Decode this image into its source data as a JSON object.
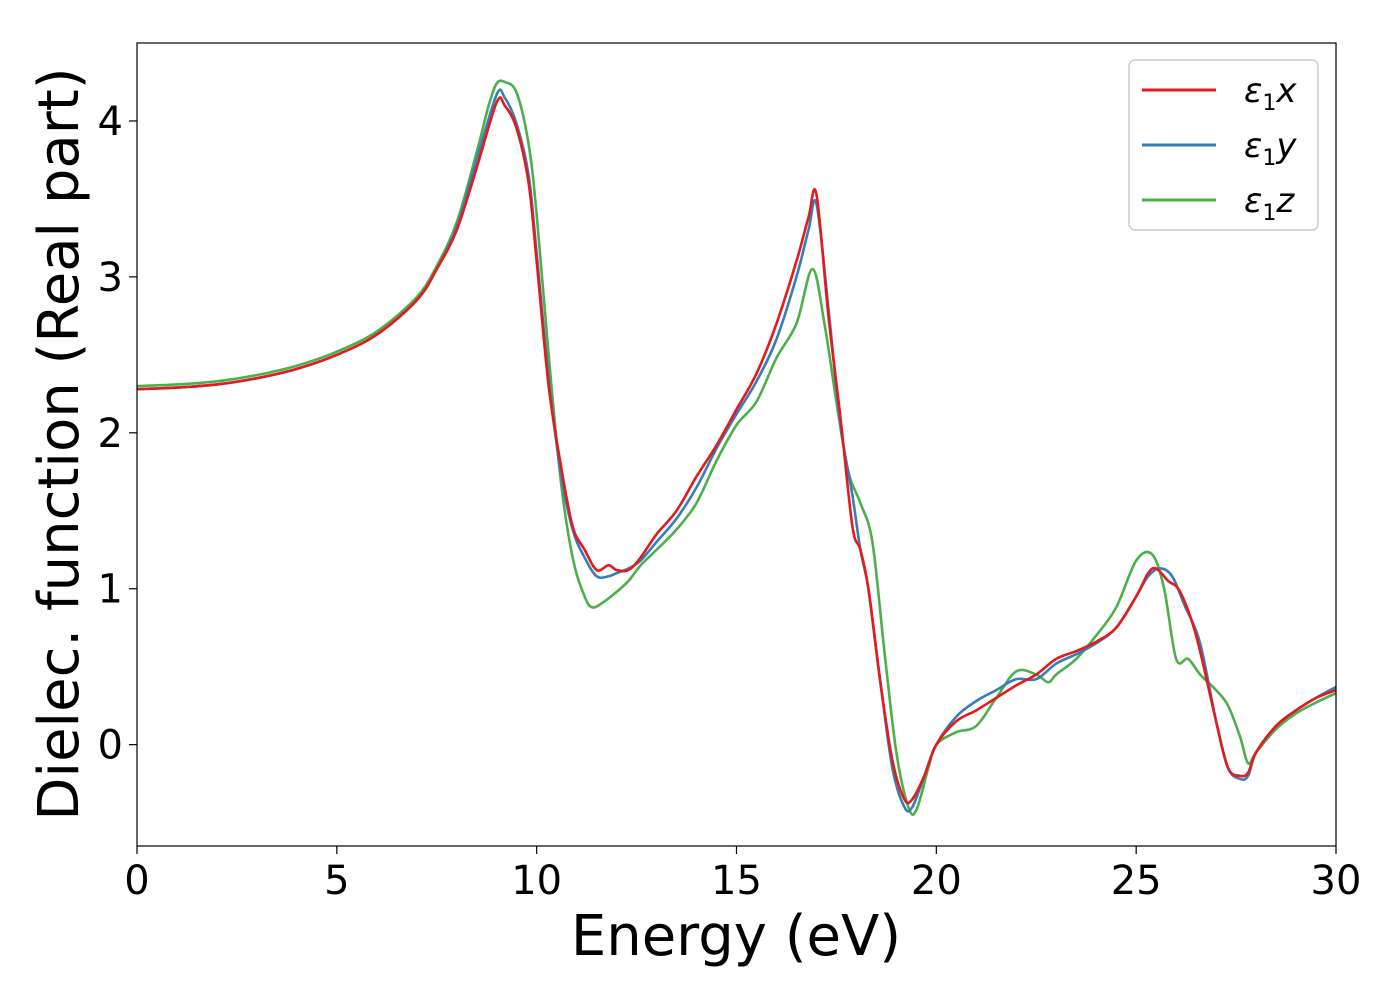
{
  "chart_data": {
    "type": "line",
    "xlabel": "Energy (eV)",
    "ylabel": "Dielec. function (Real part)",
    "xlim": [
      0,
      30
    ],
    "ylim": [
      -0.65,
      4.5
    ],
    "xticks": [
      0,
      5,
      10,
      15,
      20,
      25,
      30
    ],
    "yticks": [
      0,
      1,
      2,
      3,
      4
    ],
    "xtick_labels": [
      "0",
      "5",
      "10",
      "15",
      "20",
      "25",
      "30"
    ],
    "ytick_labels": [
      "0",
      "1",
      "2",
      "3",
      "4"
    ],
    "grid": false,
    "legend_position": "top-right",
    "series": [
      {
        "name": "ε1x",
        "legend": {
          "symbol": "ε",
          "sub": "1",
          "var": "x"
        },
        "color": "#e41a1c",
        "x": [
          0,
          1,
          2,
          3,
          4,
          5,
          6,
          7,
          7.5,
          8,
          8.5,
          9,
          9.2,
          9.5,
          9.8,
          10,
          10.3,
          10.6,
          10.9,
          11.2,
          11.5,
          11.8,
          12,
          12.3,
          12.6,
          13,
          13.5,
          14,
          14.5,
          15,
          15.5,
          16,
          16.5,
          16.8,
          17,
          17.3,
          17.6,
          17.9,
          18.1,
          18.3,
          18.6,
          18.9,
          19.2,
          19.4,
          19.7,
          20,
          20.5,
          21,
          21.5,
          22,
          22.5,
          23,
          23.5,
          24,
          24.5,
          25,
          25.3,
          25.5,
          25.8,
          26.1,
          26.5,
          27,
          27.3,
          27.6,
          27.8,
          28,
          28.5,
          29,
          29.5,
          30
        ],
        "y": [
          2.28,
          2.29,
          2.31,
          2.35,
          2.41,
          2.5,
          2.63,
          2.85,
          3.05,
          3.3,
          3.7,
          4.12,
          4.1,
          3.95,
          3.6,
          3.1,
          2.3,
          1.8,
          1.4,
          1.25,
          1.12,
          1.15,
          1.12,
          1.12,
          1.2,
          1.35,
          1.5,
          1.72,
          1.92,
          2.15,
          2.38,
          2.7,
          3.1,
          3.38,
          3.53,
          2.75,
          2.1,
          1.4,
          1.25,
          1.0,
          0.4,
          -0.1,
          -0.35,
          -0.35,
          -0.2,
          0.0,
          0.15,
          0.22,
          0.3,
          0.38,
          0.45,
          0.55,
          0.6,
          0.66,
          0.75,
          0.95,
          1.1,
          1.13,
          1.05,
          0.98,
          0.7,
          0.15,
          -0.15,
          -0.2,
          -0.18,
          -0.05,
          0.12,
          0.22,
          0.3,
          0.35
        ]
      },
      {
        "name": "ε1y",
        "legend": {
          "symbol": "ε",
          "sub": "1",
          "var": "y"
        },
        "color": "#377eb8",
        "x": [
          0,
          1,
          2,
          3,
          4,
          5,
          6,
          7,
          7.5,
          8,
          8.5,
          9,
          9.2,
          9.5,
          9.8,
          10,
          10.3,
          10.6,
          10.9,
          11.2,
          11.5,
          11.8,
          12,
          12.3,
          12.6,
          13,
          13.5,
          14,
          14.5,
          15,
          15.5,
          16,
          16.5,
          16.8,
          17,
          17.3,
          17.6,
          17.9,
          18.1,
          18.3,
          18.6,
          18.9,
          19.2,
          19.4,
          19.7,
          20,
          20.5,
          21,
          21.5,
          22,
          22.5,
          23,
          23.5,
          24,
          24.5,
          25,
          25.3,
          25.6,
          25.9,
          26.2,
          26.6,
          27,
          27.3,
          27.6,
          27.8,
          28,
          28.5,
          29,
          29.5,
          30
        ],
        "y": [
          2.28,
          2.29,
          2.31,
          2.35,
          2.41,
          2.5,
          2.63,
          2.85,
          3.05,
          3.32,
          3.75,
          4.17,
          4.15,
          3.98,
          3.65,
          3.15,
          2.35,
          1.75,
          1.38,
          1.2,
          1.08,
          1.08,
          1.1,
          1.13,
          1.18,
          1.3,
          1.45,
          1.65,
          1.9,
          2.12,
          2.33,
          2.6,
          3.0,
          3.3,
          3.47,
          2.8,
          2.05,
          1.6,
          1.25,
          1.0,
          0.4,
          -0.15,
          -0.4,
          -0.4,
          -0.2,
          0.0,
          0.18,
          0.28,
          0.35,
          0.42,
          0.42,
          0.52,
          0.58,
          0.65,
          0.75,
          0.95,
          1.08,
          1.13,
          1.08,
          0.9,
          0.65,
          0.15,
          -0.15,
          -0.22,
          -0.2,
          -0.05,
          0.12,
          0.22,
          0.3,
          0.37
        ]
      },
      {
        "name": "ε1z",
        "legend": {
          "symbol": "ε",
          "sub": "1",
          "var": "z"
        },
        "color": "#4daf4a",
        "x": [
          0,
          1,
          2,
          3,
          4,
          5,
          6,
          7,
          7.5,
          8,
          8.5,
          8.8,
          9,
          9.2,
          9.5,
          9.8,
          10,
          10.3,
          10.6,
          10.9,
          11.2,
          11.4,
          11.7,
          12,
          12.3,
          12.6,
          13,
          13.5,
          14,
          14.5,
          15,
          15.5,
          16,
          16.5,
          16.9,
          17.2,
          17.5,
          17.8,
          18.1,
          18.4,
          18.7,
          19,
          19.3,
          19.5,
          19.8,
          20,
          20.5,
          21,
          21.5,
          22,
          22.5,
          22.8,
          23,
          23.5,
          24,
          24.5,
          25,
          25.4,
          25.7,
          26,
          26.3,
          26.6,
          27,
          27.3,
          27.6,
          27.8,
          28,
          28.5,
          29,
          29.5,
          30
        ],
        "y": [
          2.3,
          2.31,
          2.33,
          2.37,
          2.43,
          2.52,
          2.65,
          2.87,
          3.07,
          3.35,
          3.8,
          4.1,
          4.24,
          4.25,
          4.18,
          3.85,
          3.4,
          2.5,
          1.7,
          1.2,
          0.95,
          0.88,
          0.92,
          0.98,
          1.05,
          1.15,
          1.25,
          1.38,
          1.55,
          1.82,
          2.05,
          2.2,
          2.48,
          2.7,
          3.05,
          2.7,
          2.2,
          1.75,
          1.55,
          1.3,
          0.6,
          -0.05,
          -0.4,
          -0.42,
          -0.15,
          0.0,
          0.08,
          0.12,
          0.3,
          0.47,
          0.45,
          0.4,
          0.45,
          0.55,
          0.7,
          0.88,
          1.18,
          1.22,
          1.0,
          0.55,
          0.55,
          0.45,
          0.35,
          0.25,
          0.05,
          -0.12,
          -0.05,
          0.1,
          0.2,
          0.27,
          0.33
        ]
      }
    ]
  }
}
